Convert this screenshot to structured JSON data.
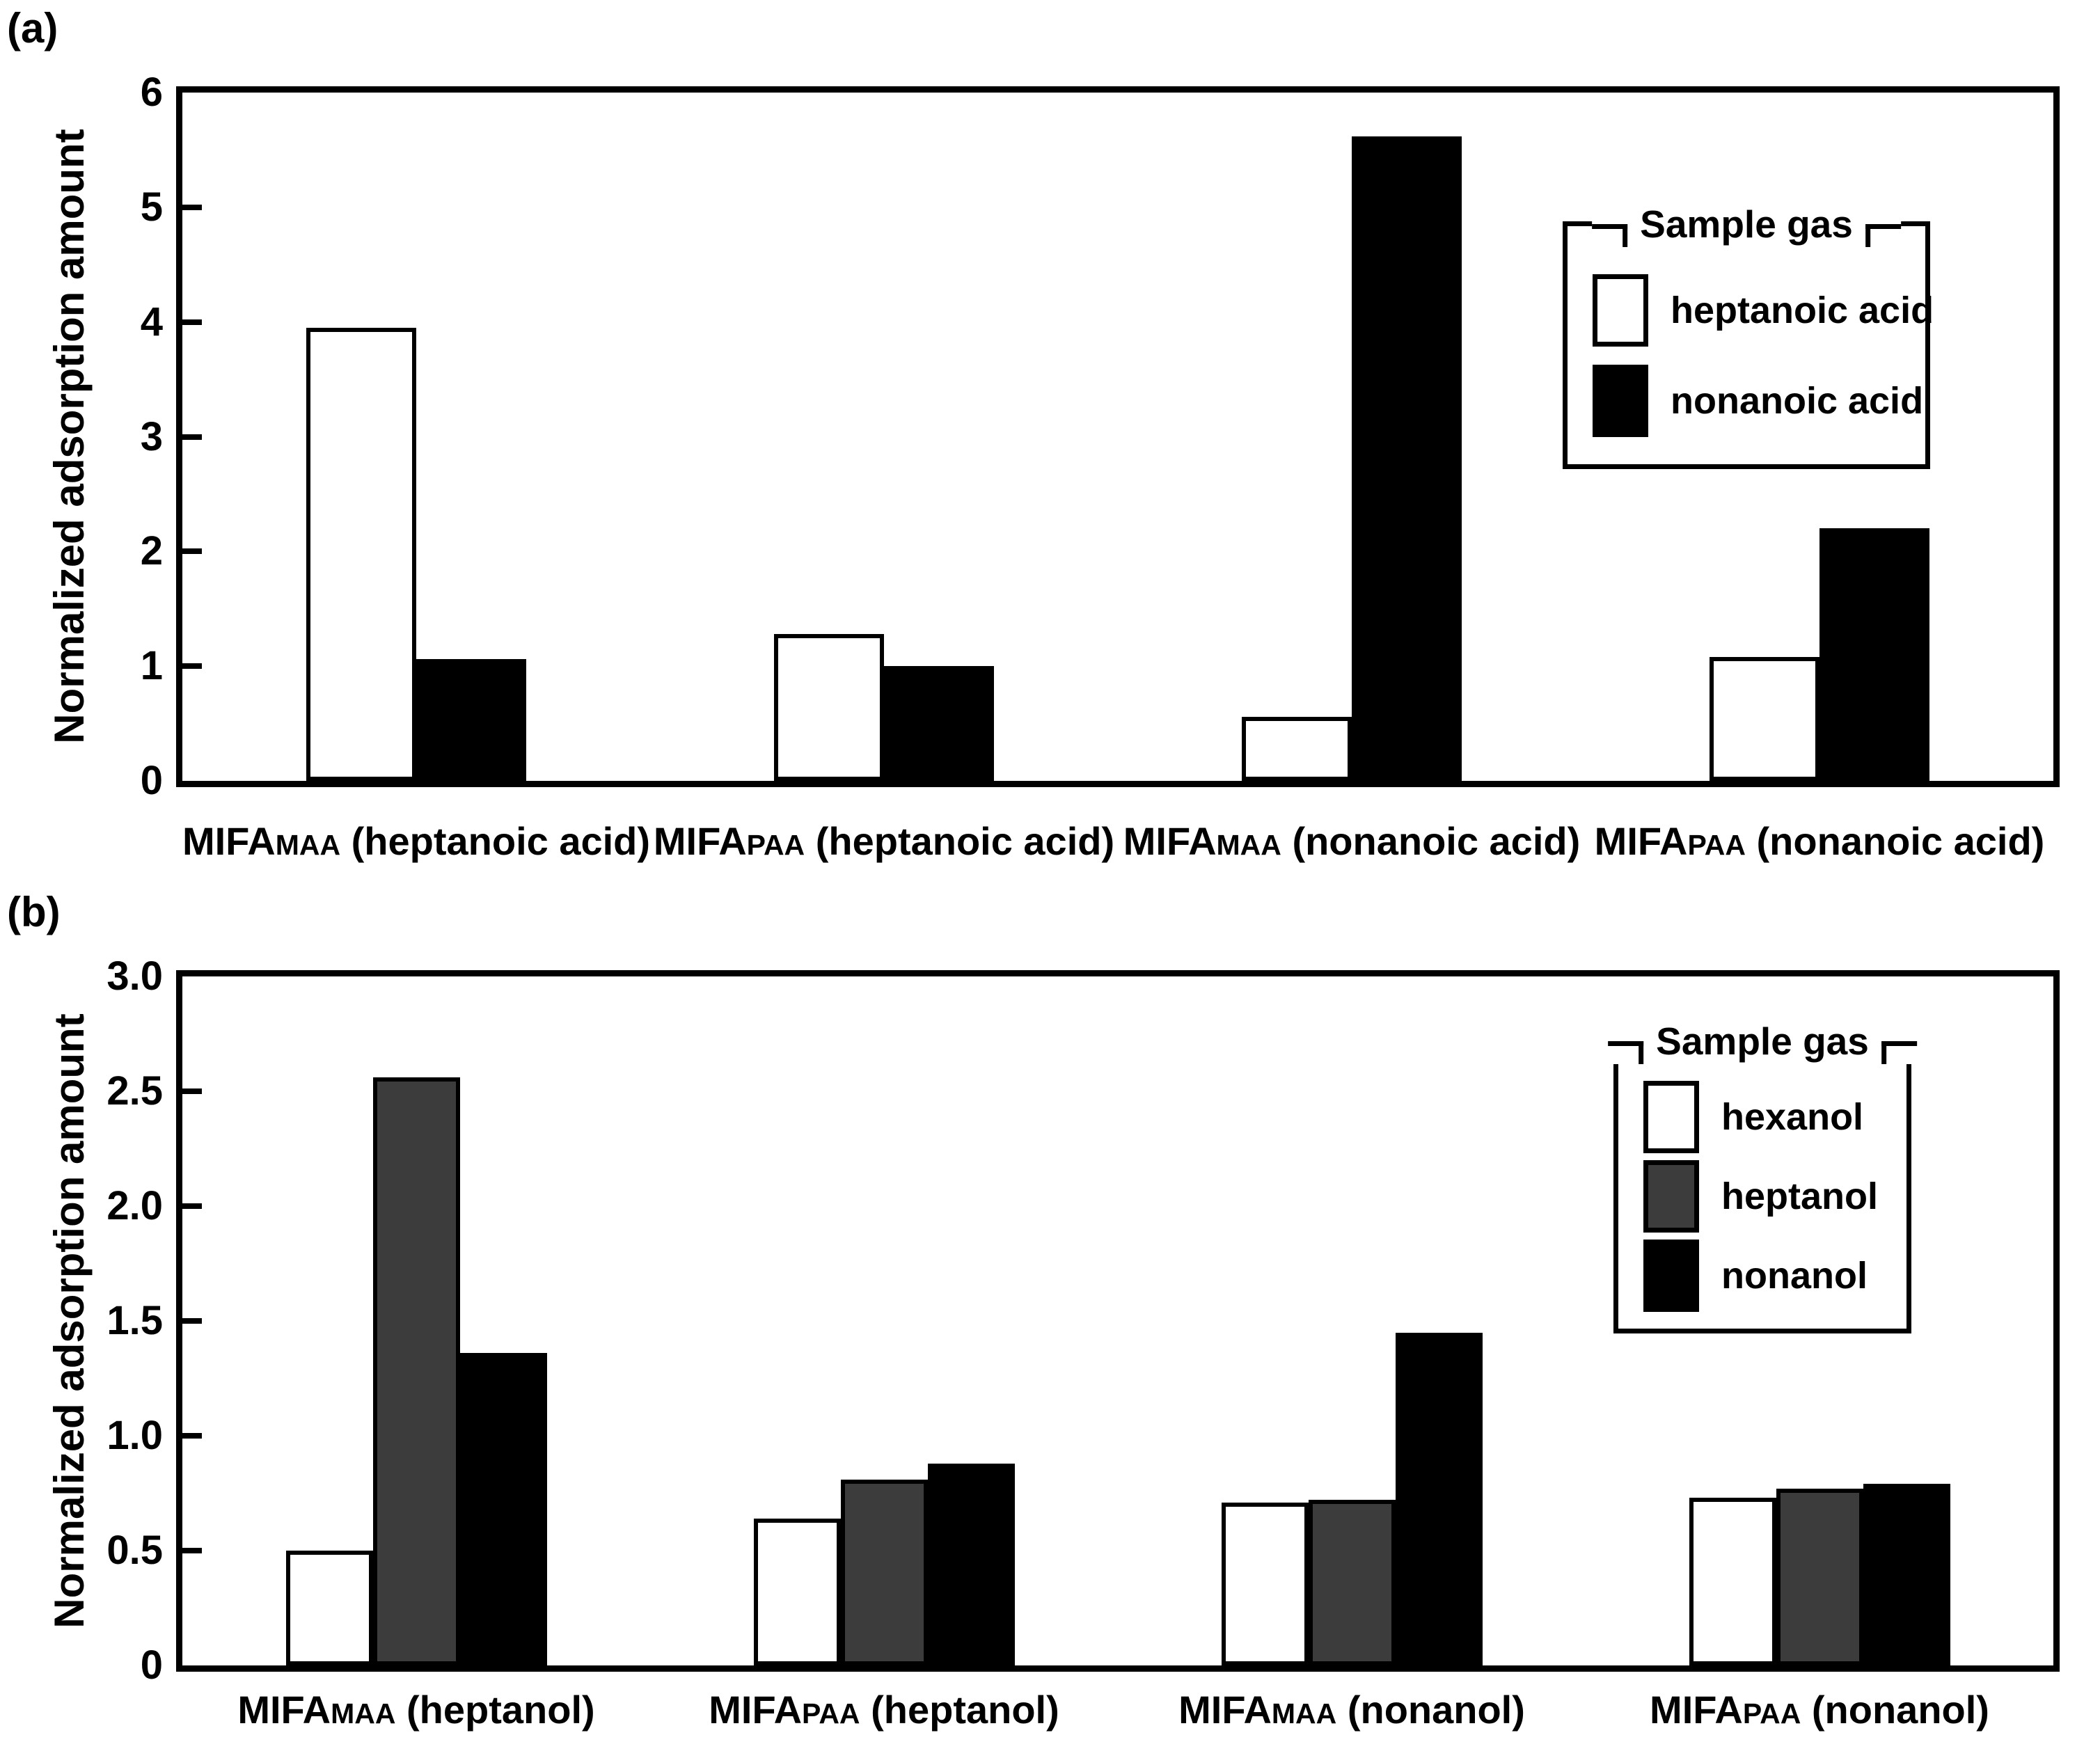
{
  "figure": {
    "background": "#ffffff",
    "text_color": "#000000",
    "bar_outline_color": "#000000"
  },
  "chart_data": [
    {
      "type": "bar",
      "panel_tag": "(a)",
      "title": "(a)",
      "xlabel": "",
      "ylabel": "Normalized adsorption amount",
      "ylim": [
        0,
        6
      ],
      "ytick_step": 1,
      "ytick_labels": [
        "0",
        "1",
        "2",
        "3",
        "4",
        "5",
        "6"
      ],
      "grid": false,
      "legend": {
        "title": "Sample gas",
        "position": "top-right"
      },
      "categories": [
        "MIFAMAA (heptanoic acid)",
        "MIFAPAA (heptanoic acid)",
        "MIFAMAA (nonanoic acid)",
        "MIFAPAA (nonanoic acid)"
      ],
      "category_parts": [
        {
          "base": "MIFA",
          "sub": "MAA",
          "rest": " (heptanoic acid)"
        },
        {
          "base": "MIFA",
          "sub": "PAA",
          "rest": " (heptanoic acid)"
        },
        {
          "base": "MIFA",
          "sub": "MAA",
          "rest": " (nonanoic acid)"
        },
        {
          "base": "MIFA",
          "sub": "PAA",
          "rest": " (nonanoic acid)"
        }
      ],
      "series": [
        {
          "name": "heptanoic acid",
          "color": "#ffffff",
          "values": [
            3.95,
            1.28,
            0.56,
            1.08
          ]
        },
        {
          "name": "nonanoic acid",
          "color": "#000000",
          "values": [
            1.06,
            1.0,
            5.62,
            2.2
          ]
        }
      ]
    },
    {
      "type": "bar",
      "panel_tag": "(b)",
      "title": "(b)",
      "xlabel": "",
      "ylabel": "Normalized adsorption amount",
      "ylim": [
        0,
        3
      ],
      "ytick_step": 0.5,
      "ytick_labels": [
        "0",
        "0.5",
        "1.0",
        "1.5",
        "2.0",
        "2.5",
        "3.0"
      ],
      "grid": false,
      "legend": {
        "title": "Sample gas",
        "position": "top-right"
      },
      "categories": [
        "MIFAMAA (heptanol)",
        "MIFAPAA (heptanol)",
        "MIFAMAA (nonanol)",
        "MIFAPAA (nonanol)"
      ],
      "category_parts": [
        {
          "base": "MIFA",
          "sub": "MAA",
          "rest": " (heptanol)"
        },
        {
          "base": "MIFA",
          "sub": "PAA",
          "rest": " (heptanol)"
        },
        {
          "base": "MIFA",
          "sub": "MAA",
          "rest": " (nonanol)"
        },
        {
          "base": "MIFA",
          "sub": "PAA",
          "rest": " (nonanol)"
        }
      ],
      "series": [
        {
          "name": "hexanol",
          "color": "#ffffff",
          "values": [
            0.5,
            0.64,
            0.71,
            0.73
          ]
        },
        {
          "name": "heptanol",
          "color": "#3c3c3c",
          "values": [
            2.56,
            0.81,
            0.72,
            0.77
          ]
        },
        {
          "name": "nonanol",
          "color": "#000000",
          "values": [
            1.36,
            0.88,
            1.45,
            0.79
          ]
        }
      ]
    }
  ]
}
